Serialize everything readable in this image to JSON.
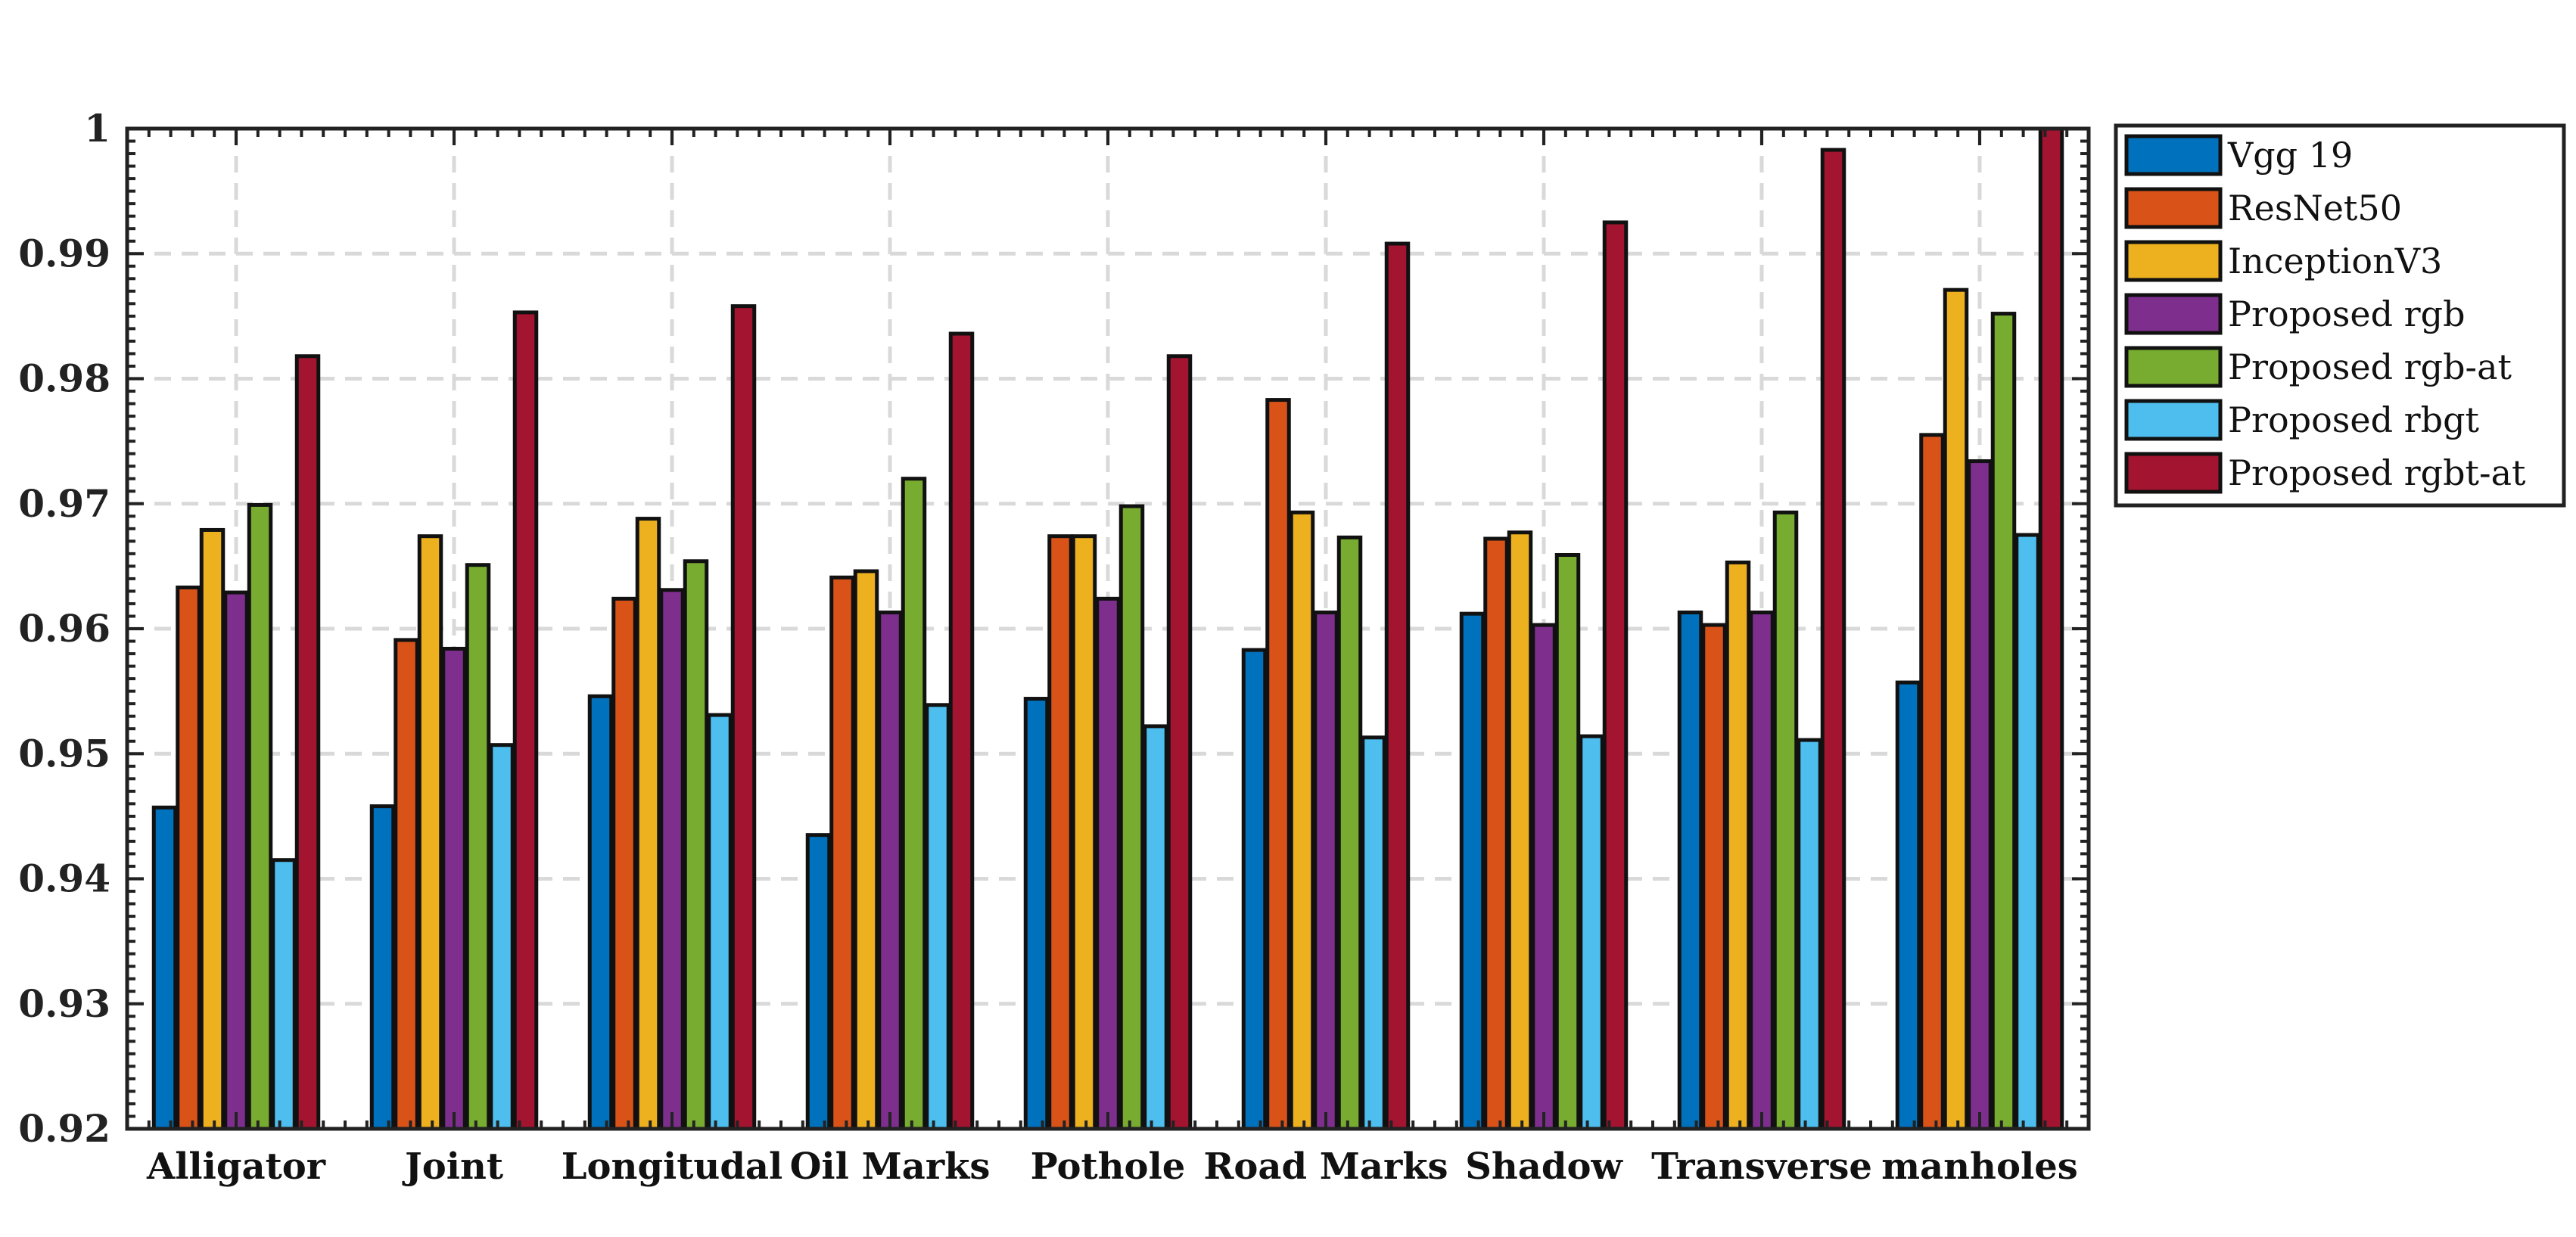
{
  "chart_data": {
    "type": "bar",
    "title": "",
    "xlabel": "",
    "ylabel": "",
    "ylim": [
      0.92,
      1.0
    ],
    "yticks": [
      0.92,
      0.93,
      0.94,
      0.95,
      0.96,
      0.97,
      0.98,
      0.99,
      1
    ],
    "ytick_labels": [
      "0.92",
      "0.93",
      "0.94",
      "0.95",
      "0.96",
      "0.97",
      "0.98",
      "0.99",
      "1"
    ],
    "grid": true,
    "legend_position": "outside-top-right",
    "categories": [
      "Alligator",
      "Joint",
      "Longitudal",
      "Oil Marks",
      "Pothole",
      "Road Marks",
      "Shadow",
      "Transverse",
      "manholes"
    ],
    "series": [
      {
        "name": "Vgg 19",
        "color": "#0072BD",
        "values": [
          0.9457,
          0.9458,
          0.9546,
          0.9435,
          0.9544,
          0.9583,
          0.9612,
          0.9613,
          0.9557
        ]
      },
      {
        "name": "ResNet50",
        "color": "#D95319",
        "values": [
          0.9633,
          0.9591,
          0.9624,
          0.9641,
          0.9674,
          0.9783,
          0.9672,
          0.9603,
          0.9755
        ]
      },
      {
        "name": "InceptionV3",
        "color": "#EDB120",
        "values": [
          0.9679,
          0.9674,
          0.9688,
          0.9646,
          0.9674,
          0.9693,
          0.9677,
          0.9653,
          0.9871
        ]
      },
      {
        "name": "Proposed rgb",
        "color": "#7E2F8E",
        "values": [
          0.9629,
          0.9584,
          0.9631,
          0.9613,
          0.9624,
          0.9613,
          0.9603,
          0.9613,
          0.9734
        ]
      },
      {
        "name": "Proposed rgb-at",
        "color": "#77AC30",
        "values": [
          0.9699,
          0.9651,
          0.9654,
          0.972,
          0.9698,
          0.9673,
          0.9659,
          0.9693,
          0.9852
        ]
      },
      {
        "name": "Proposed rbgt",
        "color": "#4DBEEE",
        "values": [
          0.9415,
          0.9507,
          0.9531,
          0.9539,
          0.9522,
          0.9513,
          0.9514,
          0.9511,
          0.9675
        ]
      },
      {
        "name": "Proposed rgbt-at",
        "color": "#A2142F",
        "values": [
          0.9818,
          0.9853,
          0.9858,
          0.9836,
          0.9818,
          0.9908,
          0.9925,
          0.9983,
          1.0
        ]
      }
    ]
  }
}
